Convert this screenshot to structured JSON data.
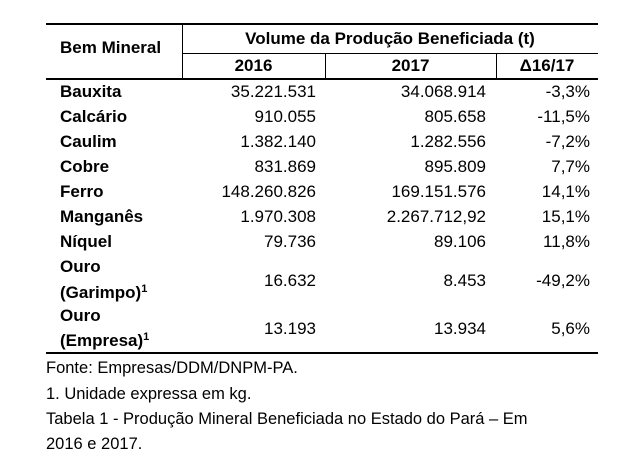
{
  "table": {
    "header": {
      "col_label": "Bem Mineral",
      "group_label": "Volume da Produção Beneficiada (t)",
      "year1": "2016",
      "year2": "2017",
      "delta": "Δ16/17"
    },
    "rows": [
      {
        "label": "Bauxita",
        "v2016": "35.221.531",
        "v2017": "34.068.914",
        "delta": "-3,3%"
      },
      {
        "label": "Calcário",
        "v2016": "910.055",
        "v2017": "805.658",
        "delta": "-11,5%"
      },
      {
        "label": "Caulim",
        "v2016": "1.382.140",
        "v2017": "1.282.556",
        "delta": "-7,2%"
      },
      {
        "label": "Cobre",
        "v2016": "831.869",
        "v2017": "895.809",
        "delta": "7,7%"
      },
      {
        "label": "Ferro",
        "v2016": "148.260.826",
        "v2017": "169.151.576",
        "delta": "14,1%"
      },
      {
        "label": "Manganês",
        "v2016": "1.970.308",
        "v2017": "2.267.712,92",
        "delta": "15,1%"
      },
      {
        "label": "Níquel",
        "v2016": "79.736",
        "v2017": "89.106",
        "delta": "11,8%"
      },
      {
        "label_line1": "Ouro",
        "label_line2": "(Garimpo)",
        "note_mark": "1",
        "v2016": "16.632",
        "v2017": "8.453",
        "delta": "-49,2%"
      },
      {
        "label_line1": "Ouro",
        "label_line2": "(Empresa)",
        "note_mark": "1",
        "v2016": "13.193",
        "v2017": "13.934",
        "delta": "5,6%"
      }
    ]
  },
  "footer": {
    "source": "Fonte: Empresas/DDM/DNPM-PA.",
    "note": "1. Unidade expressa em kg.",
    "caption_line1": "Tabela 1 - Produção Mineral Beneficiada no Estado do Pará – Em",
    "caption_line2": "2016 e 2017."
  }
}
